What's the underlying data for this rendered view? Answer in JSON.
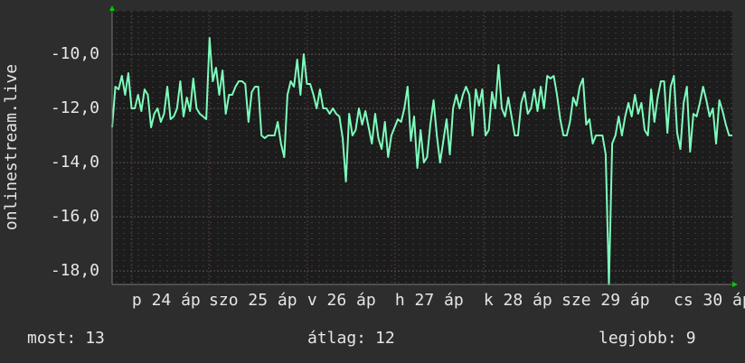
{
  "chart_data": {
    "type": "line",
    "y_label": "onlinestream.live",
    "color": "#7dfcbc",
    "grid": true,
    "xlim": [
      0,
      191
    ],
    "xticks": [
      {
        "value": 6.1,
        "label": "p 24 áp"
      },
      {
        "value": 29.8,
        "label": "szo 25 áp"
      },
      {
        "value": 60.1,
        "label": "v 26 áp"
      },
      {
        "value": 87.1,
        "label": "h 27 áp"
      },
      {
        "value": 114.4,
        "label": "k 28 áp"
      },
      {
        "value": 138.4,
        "label": "sze 29 áp"
      },
      {
        "value": 172.9,
        "label": "cs 30 áp"
      }
    ],
    "ylim": [
      -18.5,
      -8.4
    ],
    "yticks": [
      {
        "value": -10,
        "label": "-10,0"
      },
      {
        "value": -12,
        "label": "-12,0"
      },
      {
        "value": -14,
        "label": "-14,0"
      },
      {
        "value": -16,
        "label": "-16,0"
      },
      {
        "value": -18,
        "label": "-18,0"
      }
    ],
    "values": [
      -12.7,
      -11.2,
      -11.3,
      -10.8,
      -11.5,
      -10.7,
      -12,
      -12,
      -11.5,
      -12.1,
      -11.3,
      -11.5,
      -12.7,
      -12.2,
      -12,
      -12.5,
      -12.2,
      -11.2,
      -12.4,
      -12.3,
      -12,
      -11,
      -12.3,
      -11.6,
      -12.1,
      -10.9,
      -12,
      -12.2,
      -12.3,
      -12.4,
      -9.4,
      -11,
      -10.5,
      -11.5,
      -10.6,
      -12.2,
      -11.5,
      -11.5,
      -11.2,
      -11,
      -11,
      -11.1,
      -12.5,
      -11.4,
      -11.2,
      -11.2,
      -13,
      -13.1,
      -13,
      -13,
      -13,
      -12.5,
      -13.3,
      -13.8,
      -11.5,
      -11,
      -11.2,
      -10.2,
      -11.5,
      -10,
      -11.1,
      -11.1,
      -11.5,
      -12,
      -11.3,
      -12,
      -12,
      -12.2,
      -12,
      -12.2,
      -12.3,
      -13.1,
      -14.7,
      -12.2,
      -13,
      -12.8,
      -12,
      -12.6,
      -12.1,
      -12.7,
      -13.3,
      -12.2,
      -13.1,
      -13.5,
      -12.5,
      -13.8,
      -13,
      -12.7,
      -12.4,
      -12.5,
      -12,
      -11.2,
      -13.2,
      -12.3,
      -14.2,
      -12.8,
      -14,
      -13.8,
      -12.6,
      -11.7,
      -13,
      -14,
      -13.2,
      -12.4,
      -13.7,
      -12,
      -11.5,
      -12,
      -11.5,
      -11.2,
      -11.5,
      -13,
      -11.3,
      -11.9,
      -11.3,
      -13,
      -12.8,
      -11.4,
      -12,
      -10.4,
      -12,
      -12.3,
      -11.6,
      -12.3,
      -13,
      -13,
      -11.8,
      -11.4,
      -12.2,
      -12,
      -11.3,
      -12.1,
      -11.2,
      -12,
      -10.8,
      -10.9,
      -10.8,
      -11.5,
      -12.4,
      -13,
      -13,
      -12.5,
      -11.6,
      -11.9,
      -11.2,
      -10.9,
      -12.6,
      -12.4,
      -13.3,
      -13,
      -13,
      -13,
      -13.7,
      -18.5,
      -13.3,
      -13,
      -12.3,
      -13,
      -12.3,
      -11.8,
      -12.3,
      -11.5,
      -12.2,
      -11.8,
      -12.8,
      -13,
      -11.3,
      -12.5,
      -11.6,
      -11,
      -11,
      -12.9,
      -11.2,
      -10.8,
      -12.9,
      -13.5,
      -11.8,
      -11.2,
      -13.6,
      -12.2,
      -12.3,
      -11.8,
      -11.2,
      -11.7,
      -12.3,
      -12,
      -13.3,
      -11.7,
      -12.1,
      -12.6,
      -13,
      -13
    ],
    "stats": [
      {
        "label": "most:",
        "value": 13
      },
      {
        "label": "átlag:",
        "value": 12
      },
      {
        "label": "legjobb:",
        "value": 9
      }
    ]
  }
}
